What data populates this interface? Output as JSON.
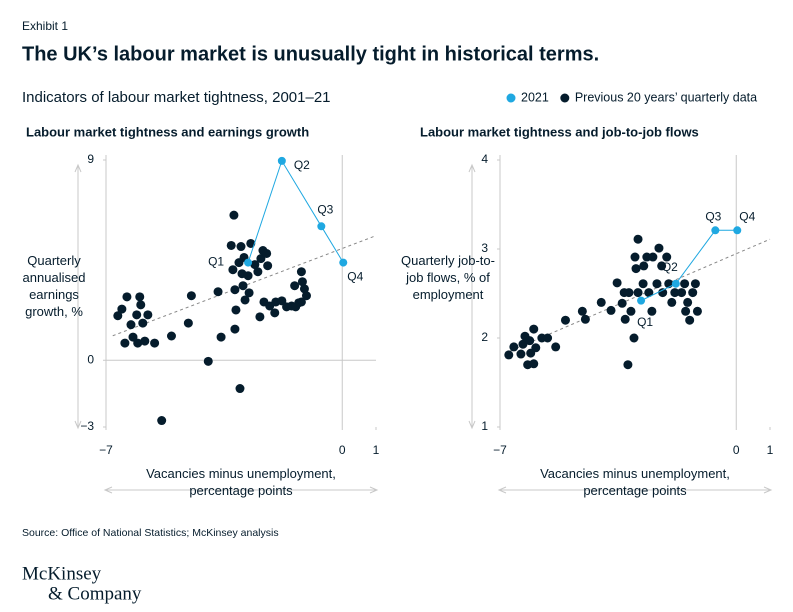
{
  "exhibit": "Exhibit 1",
  "title": "The UK’s labour market is unusually tight in historical terms.",
  "subtitle": "Indicators of labour market tightness, 2001–21",
  "source": "Source: Office of National Statistics; McKinsey analysis",
  "logo": [
    "McKinsey",
    "& Company"
  ],
  "chart_data": [
    {
      "type": "scatter",
      "title": "Labour market tightness and earnings growth",
      "ylabel": "Quarterly annualised earnings growth, %",
      "xlabel": "Vacancies minus unemployment, percentage points",
      "xlim": [
        -7,
        1
      ],
      "ylim": [
        -3,
        9
      ],
      "xticks": [
        {
          "value": -7,
          "label": "−7"
        },
        0,
        1
      ],
      "yticks": [
        {
          "value": -3,
          "label": "−3"
        },
        0,
        9
      ],
      "trendline": {
        "x": [
          -6.8,
          1
        ],
        "y": [
          1.1,
          5.6
        ]
      },
      "series": [
        {
          "name": "2021",
          "color": "#1fa8e1",
          "connected": true,
          "x": [
            -2.79,
            -1.79,
            -0.62,
            0.03
          ],
          "y": [
            4.39,
            8.96,
            6.02,
            4.39
          ],
          "labels": [
            "Q1",
            "Q2",
            "Q3",
            "Q4"
          ]
        },
        {
          "name": "Previous 20 years’ quarterly data",
          "color": "#051c2c",
          "x": [
            -6.65,
            -6.53,
            -6.38,
            -6.26,
            -6.44,
            -6.2,
            -6.09,
            -6.0,
            -5.97,
            -5.91,
            -6.06,
            -5.85,
            -5.76,
            -5.56,
            -5.06,
            -5.35,
            -4.56,
            -4.47,
            -3.97,
            -3.68,
            -3.59,
            -3.21,
            -3.29,
            -3.24,
            -3.18,
            -3.15,
            -3.18,
            -3.03,
            -3.0,
            -2.94,
            -2.88,
            -2.91,
            -3.06,
            -2.97,
            -2.79,
            -2.76,
            -2.71,
            -2.59,
            -2.5,
            -2.41,
            -2.35,
            -2.24,
            -2.21,
            -2.44,
            -2.32,
            -2.15,
            -1.97,
            -2.0,
            -1.79,
            -1.65,
            -1.5,
            -1.41,
            -1.29,
            -1.21,
            -1.12,
            -1.21,
            -1.18,
            -1.38,
            -1.06
          ],
          "y": [
            2.0,
            2.3,
            2.85,
            1.6,
            0.77,
            1.04,
            2.04,
            2.85,
            2.49,
            1.67,
            0.77,
            0.86,
            2.04,
            0.77,
            1.09,
            -2.71,
            1.67,
            2.9,
            -0.05,
            3.08,
            1.04,
            6.52,
            5.16,
            4.07,
            3.17,
            2.26,
            1.4,
            -1.27,
            5.11,
            3.35,
            2.71,
            4.62,
            4.39,
            3.89,
            3.8,
            3.03,
            5.25,
            4.3,
            3.98,
            4.57,
            4.93,
            4.8,
            4.25,
            1.95,
            2.62,
            2.44,
            2.62,
            2.13,
            2.67,
            2.4,
            2.44,
            3.35,
            2.58,
            2.62,
            3.21,
            3.98,
            3.53,
            2.4,
            2.9
          ]
        }
      ]
    },
    {
      "type": "scatter",
      "title": "Labour market tightness and job-to-job flows",
      "ylabel": "Quarterly job-to-job flows, % of employment",
      "xlabel": "Vacancies minus unemployment, percentage points",
      "xlim": [
        -7,
        1
      ],
      "ylim": [
        1,
        4
      ],
      "xticks": [
        {
          "value": -7,
          "label": "−7"
        },
        0,
        1
      ],
      "yticks": [
        1,
        2,
        3,
        4
      ],
      "trendline": {
        "x": [
          -6.85,
          1
        ],
        "y": [
          1.83,
          3.11
        ]
      },
      "series": [
        {
          "color": "#1fa8e1",
          "connected": true,
          "x": [
            -2.82,
            -1.79,
            -0.62,
            0.03
          ],
          "y": [
            2.42,
            2.61,
            3.21,
            3.21
          ],
          "labels": [
            "Q1",
            "Q2",
            "Q3",
            "Q4"
          ]
        },
        {
          "color": "#051c2c",
          "x": [
            -6.74,
            -6.59,
            -6.38,
            -6.32,
            -6.26,
            -6.18,
            -6.09,
            -6.0,
            -6.12,
            -6.0,
            -5.94,
            -5.76,
            -5.59,
            -5.35,
            -5.06,
            -4.56,
            -4.47,
            -4.0,
            -3.71,
            -3.53,
            -3.38,
            -3.29,
            -3.21,
            -3.18,
            -3.03,
            -3.0,
            -2.97,
            -2.91,
            -2.91,
            -2.76,
            -2.74,
            -2.65,
            -2.59,
            -2.5,
            -2.47,
            -2.35,
            -2.29,
            -2.21,
            -2.18,
            -2.06,
            -2.0,
            -1.91,
            -1.82,
            -1.62,
            -1.53,
            -1.44,
            -1.5,
            -1.38,
            -1.29,
            -1.21,
            -1.15,
            -3.32,
            -3.12
          ],
          "y": [
            1.81,
            1.9,
            1.82,
            1.93,
            2.02,
            1.7,
            1.83,
            2.1,
            1.97,
            1.71,
            1.89,
            2.0,
            2.0,
            1.9,
            2.2,
            2.3,
            2.21,
            2.4,
            2.31,
            2.62,
            2.39,
            2.21,
            1.7,
            2.51,
            2.0,
            2.91,
            2.78,
            3.11,
            2.51,
            2.61,
            2.81,
            2.91,
            2.51,
            2.3,
            2.91,
            2.61,
            3.01,
            2.81,
            2.51,
            2.91,
            2.61,
            2.4,
            2.51,
            2.51,
            2.61,
            2.4,
            2.3,
            2.2,
            2.51,
            2.61,
            2.3,
            2.51,
            2.3
          ]
        }
      ]
    }
  ]
}
